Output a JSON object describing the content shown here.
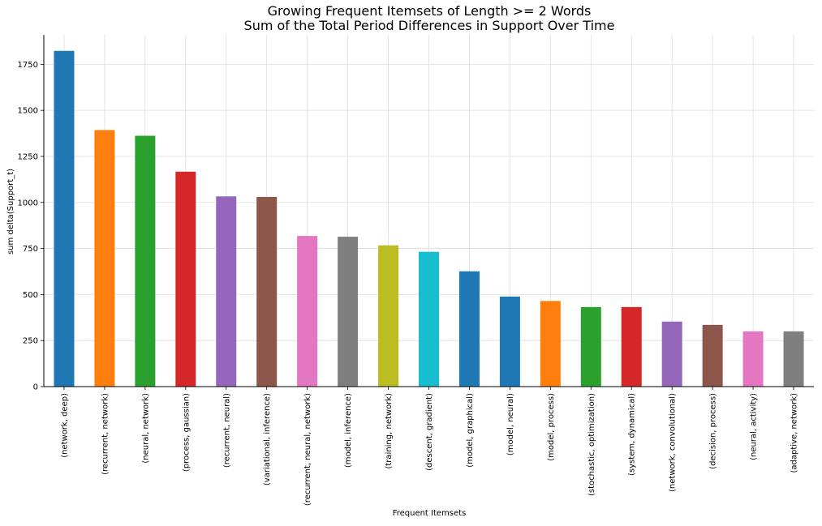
{
  "chart_data": {
    "type": "bar",
    "title_lines": [
      "Growing Frequent Itemsets of Length >= 2 Words",
      "Sum of the Total Period Differences in Support Over Time"
    ],
    "xlabel": "Frequent Itemsets",
    "ylabel": "sum delta(Support_t)",
    "ylim": [
      0,
      1910
    ],
    "yticks": [
      0,
      250,
      500,
      750,
      1000,
      1250,
      1500,
      1750
    ],
    "ytick_labels": [
      "0",
      "250",
      "500",
      "750",
      "1000",
      "1250",
      "1500",
      "1750"
    ],
    "grid": true,
    "categories": [
      "(network, deep)",
      "(recurrent, network)",
      "(neural, network)",
      "(process, gaussian)",
      "(recurrent, neural)",
      "(variational, inference)",
      "(recurrent, neural, network)",
      "(model, inference)",
      "(training, network)",
      "(descent, gradient)",
      "(model, graphical)",
      "(model, neural)",
      "(model, process)",
      "(stochastic, optimization)",
      "(system, dynamical)",
      "(network, convolutional)",
      "(decision, process)",
      "(neural, activity)",
      "(adaptive, network)"
    ],
    "values": [
      1823,
      1393,
      1362,
      1167,
      1033,
      1030,
      818,
      814,
      767,
      732,
      626,
      489,
      465,
      432,
      432,
      353,
      335,
      300,
      300
    ],
    "colors": [
      "#1f77b4",
      "#ff7f0e",
      "#2ca02c",
      "#d62728",
      "#9467bd",
      "#8c564b",
      "#e377c2",
      "#7f7f7f",
      "#bcbd22",
      "#17becf",
      "#1f77b4",
      "#1f77b4",
      "#ff7f0e",
      "#2ca02c",
      "#d62728",
      "#9467bd",
      "#8c564b",
      "#e377c2",
      "#7f7f7f"
    ],
    "grid_color": "#dddddd",
    "axis_color": "#000000"
  }
}
